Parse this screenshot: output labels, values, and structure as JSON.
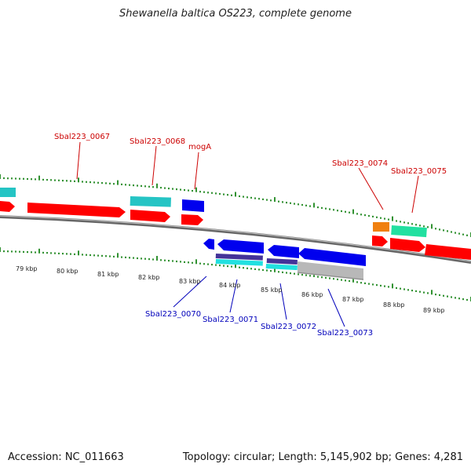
{
  "title": "Shewanella baltica OS223, complete genome",
  "footer": {
    "accession": "Accession: NC_011663",
    "topology": "Topology: circular; Length: 5,145,902 bp; Genes: 4,281"
  },
  "colors": {
    "forward_gene": "#ff0000",
    "reverse_gene": "#0000ee",
    "forward_label": "#cc0000",
    "reverse_label": "#0000bb",
    "tick": "#007700",
    "backbone": "#808080"
  },
  "scale_labels": [
    "79 kbp",
    "80 kbp",
    "81 kbp",
    "82 kbp",
    "83 kbp",
    "84 kbp",
    "85 kbp",
    "86 kbp",
    "87 kbp",
    "88 kbp",
    "89 kbp"
  ],
  "forward_gene_labels": [
    "Sbal223_0067",
    "Sbal223_0068",
    "mogA",
    "Sbal223_0074",
    "Sbal223_0075"
  ],
  "reverse_gene_labels": [
    "Sbal223_0070",
    "Sbal223_0071",
    "Sbal223_0072",
    "Sbal223_0073"
  ]
}
